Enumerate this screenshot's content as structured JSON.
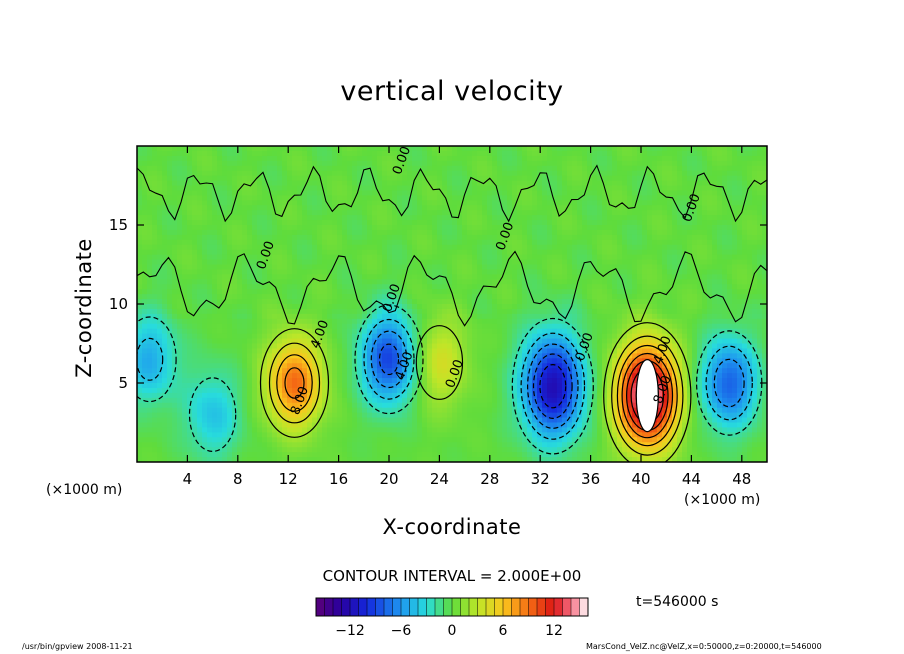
{
  "header": {
    "title": "vertical velocity"
  },
  "chart_data": {
    "type": "heatmap",
    "title": "vertical velocity",
    "xlabel": "X-coordinate",
    "ylabel": "Z-coordinate",
    "x_unit_label": "(×1000 m)",
    "xlim": [
      0,
      50
    ],
    "ylim": [
      0,
      20
    ],
    "x_ticks": [
      "4",
      "8",
      "12",
      "16",
      "20",
      "24",
      "28",
      "32",
      "36",
      "40",
      "44",
      "48"
    ],
    "y_ticks": [
      "5",
      "10",
      "15"
    ],
    "x_tick_values": [
      4,
      8,
      12,
      16,
      20,
      24,
      28,
      32,
      36,
      40,
      44,
      48
    ],
    "y_tick_values": [
      5,
      10,
      15
    ],
    "contour_interval": "CONTOUR INTERVAL = 2.000E+00",
    "time_label": "t=546000 s",
    "colorbar": {
      "range": [
        -16,
        16
      ],
      "ticks": [
        "−12",
        "−6",
        "0",
        "6",
        "12"
      ],
      "tick_values": [
        -12,
        -6,
        0,
        6,
        12
      ]
    },
    "contour_labels": [
      {
        "text": "0.00",
        "x": 21.3,
        "z": 19.0
      },
      {
        "text": "0.00",
        "x": 10.5,
        "z": 13.0
      },
      {
        "text": "0.00",
        "x": 20.5,
        "z": 10.3
      },
      {
        "text": "0.00",
        "x": 29.5,
        "z": 14.2
      },
      {
        "text": "0.00",
        "x": 44.3,
        "z": 16.0
      },
      {
        "text": "0.00",
        "x": 25.5,
        "z": 5.5
      },
      {
        "text": "0.00",
        "x": 35.8,
        "z": 7.2
      },
      {
        "text": "4.00",
        "x": 14.8,
        "z": 8.0
      },
      {
        "text": "8.00",
        "x": 13.2,
        "z": 3.8
      },
      {
        "text": "4.00",
        "x": 21.5,
        "z": 6.0
      },
      {
        "text": "4.00",
        "x": 42.0,
        "z": 7.0
      },
      {
        "text": "8.00",
        "x": 42.0,
        "z": 4.5
      }
    ],
    "features": [
      {
        "kind": "updraft",
        "x": 12.5,
        "z": 5.0,
        "peak": 9
      },
      {
        "kind": "updraft",
        "x": 40.5,
        "z": 4.2,
        "peak": 16
      },
      {
        "kind": "updraft",
        "x": 24.0,
        "z": 6.3,
        "peak": 4
      },
      {
        "kind": "downdraft",
        "x": 20.0,
        "z": 6.5,
        "peak": -9
      },
      {
        "kind": "downdraft",
        "x": 33.0,
        "z": 4.8,
        "peak": -12
      },
      {
        "kind": "downdraft",
        "x": 47.0,
        "z": 5.0,
        "peak": -8
      },
      {
        "kind": "downdraft",
        "x": 1.0,
        "z": 6.5,
        "peak": -5
      },
      {
        "kind": "downdraft",
        "x": 6.0,
        "z": 3.0,
        "peak": -4
      }
    ]
  },
  "footer": {
    "left": "/usr/bin/gpview   2008-11-21",
    "right": "MarsCond_VelZ.nc@VelZ,x=0:50000,z=0:20000,t=546000"
  },
  "colors": {
    "background_field": "#5fdc3a",
    "white_core": "#ffffff",
    "frame": "#000000"
  }
}
